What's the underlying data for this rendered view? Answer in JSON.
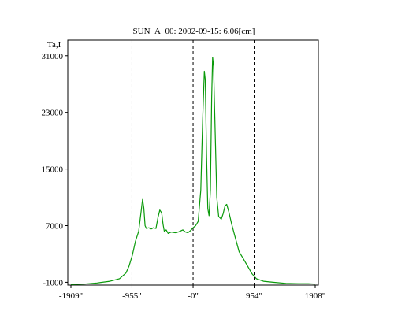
{
  "chart_data": {
    "type": "line",
    "title": "SUN_A_00: 2002-09-15: 6.06[cm]",
    "ylabel": "Ta,I",
    "xlabel": "",
    "xlim": [
      -1909,
      1908
    ],
    "ylim": [
      -1400,
      33200
    ],
    "x_ticks": [
      {
        "value": -1909,
        "label": "-1909\""
      },
      {
        "value": -955,
        "label": "-955\""
      },
      {
        "value": 0,
        "label": "-0\""
      },
      {
        "value": 954,
        "label": "954\""
      },
      {
        "value": 1908,
        "label": "1908\""
      }
    ],
    "y_ticks": [
      {
        "value": -1000,
        "label": "-1000"
      },
      {
        "value": 7000,
        "label": "7000"
      },
      {
        "value": 15000,
        "label": "15000"
      },
      {
        "value": 23000,
        "label": "23000"
      },
      {
        "value": 31000,
        "label": "31000"
      }
    ],
    "reference_lines_x": [
      -955,
      0,
      954
    ],
    "grid": false,
    "series": [
      {
        "color": "#0a9a0a",
        "points": [
          [
            -1909,
            -1300
          ],
          [
            -1700,
            -1250
          ],
          [
            -1500,
            -1100
          ],
          [
            -1300,
            -850
          ],
          [
            -1150,
            -500
          ],
          [
            -1050,
            300
          ],
          [
            -1000,
            1300
          ],
          [
            -950,
            2800
          ],
          [
            -900,
            4800
          ],
          [
            -850,
            6200
          ],
          [
            -810,
            9200
          ],
          [
            -790,
            10700
          ],
          [
            -770,
            9500
          ],
          [
            -750,
            7000
          ],
          [
            -730,
            6600
          ],
          [
            -690,
            6700
          ],
          [
            -660,
            6500
          ],
          [
            -620,
            6700
          ],
          [
            -580,
            6600
          ],
          [
            -550,
            8100
          ],
          [
            -520,
            9200
          ],
          [
            -490,
            8800
          ],
          [
            -470,
            7200
          ],
          [
            -450,
            6200
          ],
          [
            -420,
            6400
          ],
          [
            -390,
            5900
          ],
          [
            -340,
            6100
          ],
          [
            -280,
            6000
          ],
          [
            -230,
            6100
          ],
          [
            -160,
            6400
          ],
          [
            -120,
            6100
          ],
          [
            -80,
            6000
          ],
          [
            -40,
            6300
          ],
          [
            0,
            6700
          ],
          [
            40,
            7000
          ],
          [
            80,
            7600
          ],
          [
            120,
            12000
          ],
          [
            150,
            22000
          ],
          [
            175,
            28800
          ],
          [
            190,
            27600
          ],
          [
            210,
            17000
          ],
          [
            230,
            9400
          ],
          [
            250,
            8400
          ],
          [
            270,
            12000
          ],
          [
            290,
            25000
          ],
          [
            305,
            30800
          ],
          [
            320,
            29500
          ],
          [
            345,
            20000
          ],
          [
            370,
            11000
          ],
          [
            400,
            8300
          ],
          [
            440,
            7900
          ],
          [
            470,
            8700
          ],
          [
            500,
            9800
          ],
          [
            525,
            10000
          ],
          [
            560,
            8900
          ],
          [
            600,
            7300
          ],
          [
            660,
            5300
          ],
          [
            720,
            3300
          ],
          [
            780,
            2400
          ],
          [
            850,
            1300
          ],
          [
            920,
            200
          ],
          [
            990,
            -500
          ],
          [
            1100,
            -850
          ],
          [
            1250,
            -1000
          ],
          [
            1450,
            -1150
          ],
          [
            1650,
            -1200
          ],
          [
            1800,
            -1200
          ],
          [
            1908,
            -1250
          ]
        ]
      }
    ]
  }
}
